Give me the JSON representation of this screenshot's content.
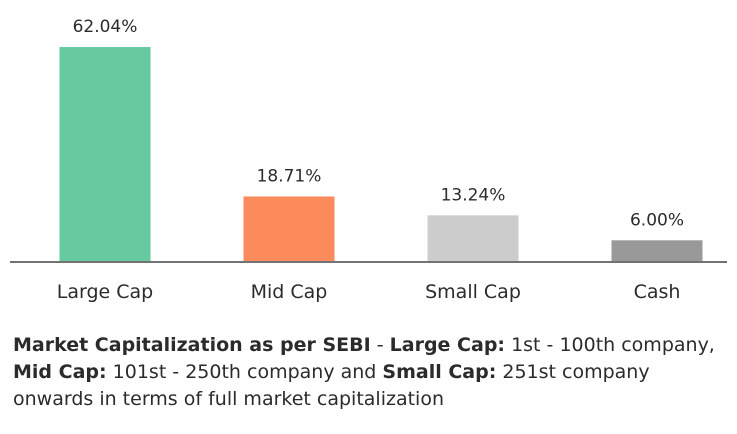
{
  "chart_data": {
    "type": "bar",
    "categories": [
      "Large Cap",
      "Mid Cap",
      "Small Cap",
      "Cash"
    ],
    "values": [
      62.04,
      18.71,
      13.24,
      6.0
    ],
    "value_labels": [
      "62.04%",
      "18.71%",
      "13.24%",
      "6.00%"
    ],
    "colors": [
      "#66c9a0",
      "#fb8b5c",
      "#cccccc",
      "#999999"
    ],
    "ylim": [
      0,
      62.04
    ],
    "grid": false,
    "legend": "none",
    "title": "",
    "xlabel": "",
    "ylabel": ""
  },
  "footnote": {
    "t1": "Market Capitalization as per SEBI",
    "t2": " - ",
    "t3": "Large Cap:",
    "t4": " 1st - 100th company, ",
    "t5": "Mid Cap:",
    "t6": " 101st - 250th company and ",
    "t7": "Small Cap:",
    "t8": " 251st company onwards in terms of full market capitalization"
  }
}
